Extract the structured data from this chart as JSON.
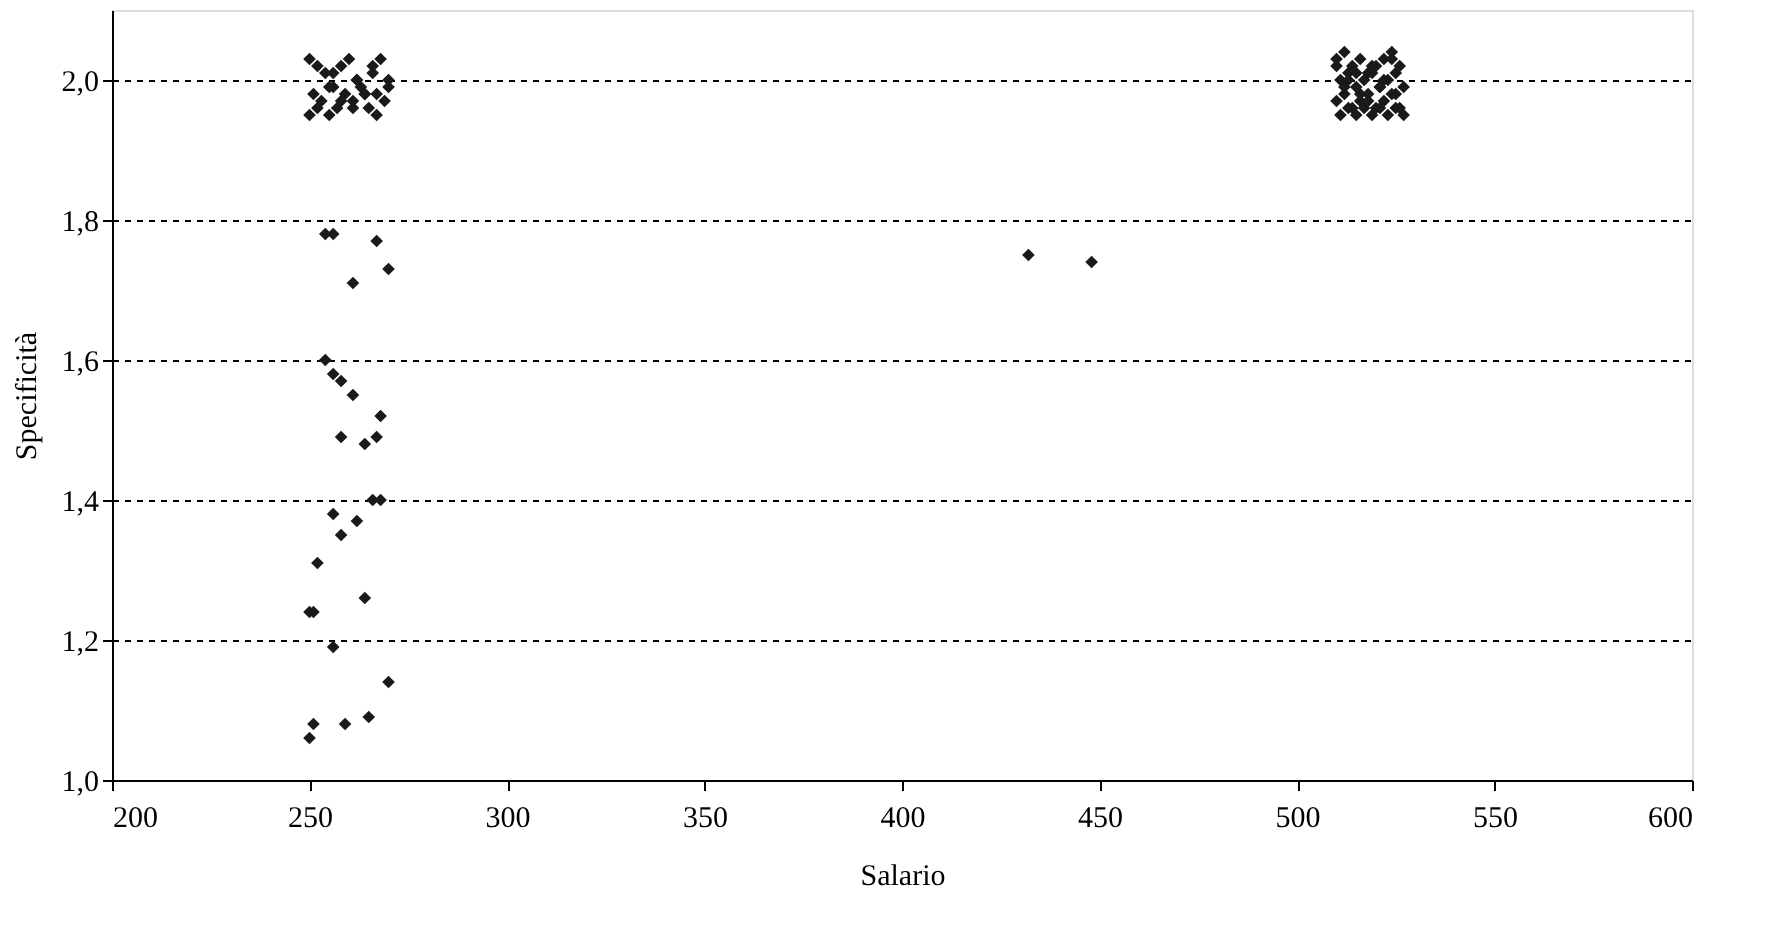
{
  "chart_data": {
    "type": "scatter",
    "xlabel": "Salario",
    "ylabel": "Specificità",
    "xlim": [
      200,
      600
    ],
    "xticks": [
      200,
      250,
      300,
      350,
      400,
      450,
      500,
      550,
      600
    ],
    "ylim": [
      1.0,
      2.1
    ],
    "yticks": [
      {
        "value": 1.0,
        "label": "1,0"
      },
      {
        "value": 1.2,
        "label": "1,2"
      },
      {
        "value": 1.4,
        "label": "1,4"
      },
      {
        "value": 1.6,
        "label": "1,6"
      },
      {
        "value": 1.8,
        "label": "1,8"
      },
      {
        "value": 2.0,
        "label": "2,0"
      }
    ],
    "grid": "y",
    "marker": "diamond",
    "legend": false,
    "series": [
      {
        "color": "#1a1a1a",
        "x": [
          250,
          252,
          254,
          256,
          258,
          260,
          262,
          264,
          266,
          268,
          270,
          251,
          253,
          255,
          257,
          259,
          261,
          263,
          265,
          267,
          269,
          250,
          252,
          255,
          258,
          261,
          264,
          267,
          270,
          256,
          262,
          266,
          254,
          256,
          267,
          270,
          261,
          254,
          256,
          258,
          261,
          268,
          258,
          264,
          267,
          268,
          266,
          256,
          262,
          258,
          252,
          250,
          251,
          264,
          256,
          270,
          251,
          250,
          259,
          265,
          432,
          448,
          510,
          512,
          514,
          516,
          518,
          520,
          522,
          524,
          526,
          511,
          513,
          515,
          517,
          519,
          521,
          523,
          525,
          527,
          510,
          512,
          514,
          516,
          518,
          520,
          522,
          524,
          526,
          511,
          513,
          515,
          517,
          519,
          521,
          523,
          525,
          510,
          513,
          516,
          519,
          522,
          525,
          512,
          515,
          518,
          521,
          524,
          527
        ],
        "values": [
          2.03,
          2.02,
          2.01,
          1.99,
          2.02,
          2.03,
          2.0,
          1.98,
          2.02,
          2.03,
          2.0,
          1.98,
          1.97,
          1.99,
          1.96,
          1.98,
          1.97,
          1.99,
          1.96,
          1.98,
          1.97,
          1.95,
          1.96,
          1.95,
          1.97,
          1.96,
          1.98,
          1.95,
          1.99,
          2.01,
          2.0,
          2.01,
          1.78,
          1.78,
          1.77,
          1.73,
          1.71,
          1.6,
          1.58,
          1.57,
          1.55,
          1.52,
          1.49,
          1.48,
          1.49,
          1.4,
          1.4,
          1.38,
          1.37,
          1.35,
          1.31,
          1.24,
          1.24,
          1.26,
          1.19,
          1.14,
          1.08,
          1.06,
          1.08,
          1.09,
          1.75,
          1.74,
          2.03,
          2.04,
          2.02,
          2.03,
          2.01,
          2.02,
          2.03,
          2.04,
          2.02,
          2.0,
          2.01,
          1.99,
          2.0,
          2.01,
          1.99,
          2.0,
          2.01,
          1.99,
          1.97,
          1.98,
          1.96,
          1.97,
          1.98,
          1.96,
          1.97,
          1.98,
          1.96,
          1.95,
          1.96,
          1.95,
          1.96,
          1.95,
          1.96,
          1.95,
          1.96,
          2.02,
          2.0,
          1.98,
          2.02,
          2.0,
          1.98,
          1.99,
          2.01,
          1.97,
          1.99,
          2.03,
          1.95
        ]
      }
    ]
  }
}
